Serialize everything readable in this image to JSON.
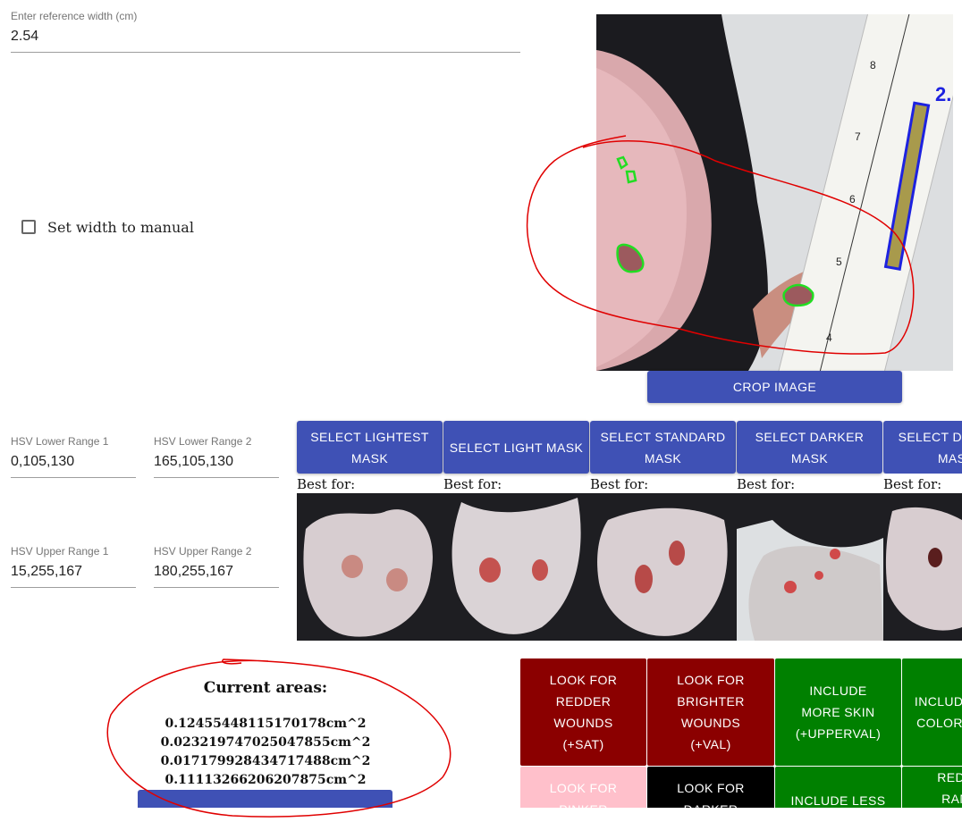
{
  "reference": {
    "label": "Enter reference width (cm)",
    "value": "2.54"
  },
  "manual_checkbox": {
    "label": "Set width to manual",
    "checked": false
  },
  "main_image": {
    "ruler_value": "2.",
    "ruler_ticks": [
      "8",
      "7",
      "6",
      "5",
      "4"
    ]
  },
  "crop_button": {
    "label": "CROP IMAGE"
  },
  "hsv": {
    "lower1": {
      "label": "HSV Lower Range 1",
      "value": "0,105,130"
    },
    "lower2": {
      "label": "HSV Lower Range 2",
      "value": "165,105,130"
    },
    "upper1": {
      "label": "HSV Upper Range 1",
      "value": "15,255,167"
    },
    "upper2": {
      "label": "HSV Upper Range 2",
      "value": "180,255,167"
    }
  },
  "mask_buttons": [
    {
      "label": "SELECT LIGHTEST MASK"
    },
    {
      "label": "SELECT LIGHT MASK"
    },
    {
      "label": "SELECT STANDARD MASK"
    },
    {
      "label": "SELECT DARKER MASK"
    },
    {
      "label": "SELECT DARKEST MASK"
    }
  ],
  "best_for": "Best for:",
  "areas": {
    "title": "Current areas:",
    "values": [
      "0.12455448115170178cm^2",
      "0.023219747025047855cm^2",
      "0.017179928434717488cm^2",
      "0.11113266206207875cm^2"
    ]
  },
  "tone_buttons": {
    "redder": "LOOK FOR REDDER WOUNDS (+SAT)",
    "brighter": "LOOK FOR BRIGHTER WOUNDS (+VAL)",
    "more_skin": "INCLUDE MORE SKIN (+UPPERVAL)",
    "more_color": "INCLUDE MORE COLOR RANGE",
    "pinker": "LOOK FOR PINKER",
    "darker": "LOOK FOR DARKER",
    "less": "INCLUDE LESS",
    "reduce": "REDUCE RANGE"
  },
  "colors": {
    "primary": "#3f51b5",
    "dark_red": "#8b0000",
    "green": "#008000",
    "pink": "#ffc0cb",
    "black": "#000000",
    "annotation_red": "#e00000",
    "contour_green": "#22dd22"
  }
}
